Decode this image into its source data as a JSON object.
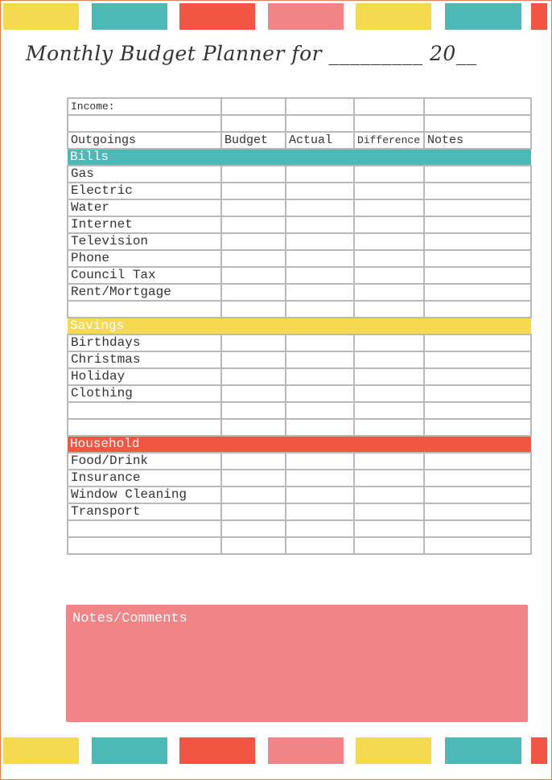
{
  "colors": {
    "yellow": "#f5d951",
    "teal": "#4db9b6",
    "red": "#f15544",
    "pink": "#f08486",
    "border": "#e0834a"
  },
  "title": "Monthly Budget Planner for _________ 20__",
  "table": {
    "income_label": "Income:",
    "headers": [
      "Outgoings",
      "Budget",
      "Actual",
      "Difference",
      "Notes"
    ],
    "sections": [
      {
        "label": "Bills",
        "color": "#4db9b6",
        "items": [
          "Gas",
          "Electric",
          "Water",
          "Internet",
          "Television",
          "Phone",
          "Council Tax",
          "Rent/Mortgage",
          ""
        ]
      },
      {
        "label": "Savings",
        "color": "#f5d951",
        "items": [
          "Birthdays",
          "Christmas",
          "Holiday",
          "Clothing",
          "",
          ""
        ]
      },
      {
        "label": "Household",
        "color": "#f15544",
        "items": [
          "Food/Drink",
          "Insurance",
          "Window Cleaning",
          "Transport",
          "",
          ""
        ]
      }
    ]
  },
  "notes_label": "Notes/Comments"
}
